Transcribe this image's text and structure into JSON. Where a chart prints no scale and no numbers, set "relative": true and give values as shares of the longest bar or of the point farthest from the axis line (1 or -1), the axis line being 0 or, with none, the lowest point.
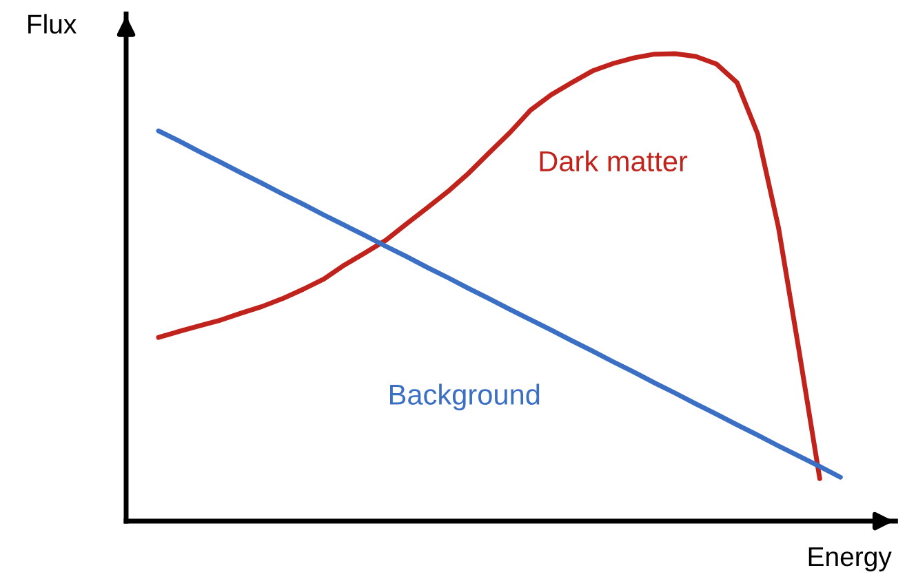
{
  "chart_data": {
    "type": "line",
    "relative": true,
    "xlabel": "Energy",
    "ylabel": "Flux",
    "grid": false,
    "legend": false,
    "categories": [
      null,
      null,
      null,
      null,
      null,
      null,
      null,
      null,
      null,
      null,
      null,
      null,
      null,
      null,
      null,
      null,
      null,
      null,
      null,
      null,
      null,
      null,
      null,
      null,
      null,
      null,
      null,
      null,
      null,
      null,
      null,
      null,
      null,
      null
    ],
    "series": [
      {
        "name": "Dark matter",
        "color": "#c0231b",
        "values": [
          0.393,
          0.406,
          0.418,
          0.43,
          0.445,
          0.459,
          0.476,
          0.496,
          0.518,
          0.548,
          0.574,
          0.601,
          0.636,
          0.67,
          0.705,
          0.744,
          0.788,
          0.831,
          0.879,
          0.912,
          0.938,
          0.963,
          0.979,
          0.991,
          0.999,
          1.0,
          0.994,
          0.978,
          0.938,
          0.828,
          0.629,
          0.364,
          0.091,
          null
        ]
      },
      {
        "name": "Background",
        "color": "#3a6fc4",
        "values": [
          0.835,
          0.813,
          0.79,
          0.768,
          0.745,
          0.723,
          0.7,
          0.678,
          0.655,
          0.633,
          0.611,
          0.588,
          0.566,
          0.543,
          0.521,
          0.498,
          0.476,
          0.453,
          0.431,
          0.409,
          0.386,
          0.364,
          0.341,
          0.319,
          0.296,
          0.274,
          0.251,
          0.229,
          0.206,
          0.184,
          0.161,
          0.139,
          0.117,
          0.094
        ]
      }
    ]
  }
}
